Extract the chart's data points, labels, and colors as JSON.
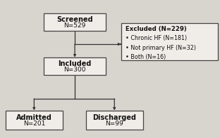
{
  "screened_label": "Screened",
  "screened_n": "N=529",
  "included_label": "Included",
  "included_n": "N=300",
  "admitted_label": "Admitted",
  "admitted_n": "N=201",
  "discharged_label": "Discharged",
  "discharged_n": "N=99",
  "excluded_title": "Excluded (N=229)",
  "excluded_bullets": [
    "Chronic HF (N=181)",
    "Not primary HF (N=32)",
    "Both (N=16)"
  ],
  "box_facecolor": "#f0ede8",
  "box_edgecolor": "#444444",
  "text_color": "#111111",
  "bg_color": "#d8d4ce",
  "arrow_color": "#333333",
  "lw": 0.9
}
